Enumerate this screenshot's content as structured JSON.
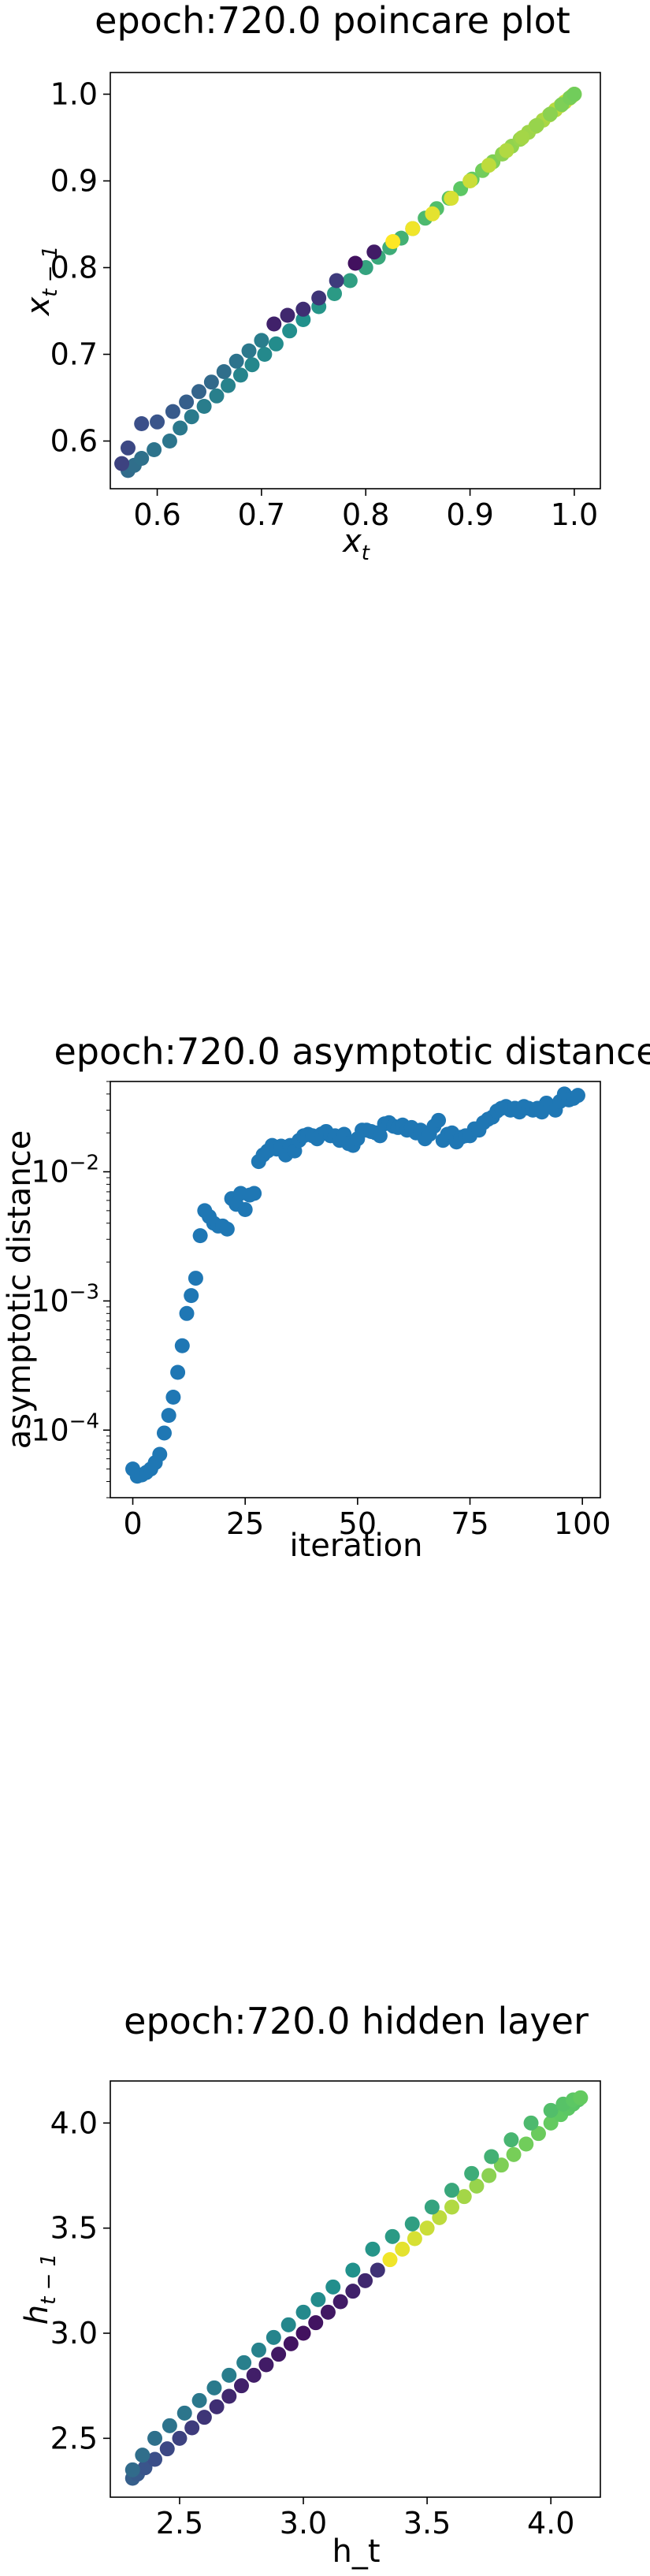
{
  "chart_data": [
    {
      "type": "scatter",
      "title": "epoch:720.0 poincare plot",
      "xlabel": "x_t",
      "ylabel": "x_{t-1}",
      "xlim": [
        0.555,
        1.025
      ],
      "ylim": [
        0.545,
        1.025
      ],
      "xticks": [
        0.6,
        0.7,
        0.8,
        0.9,
        1.0
      ],
      "xtick_labels": [
        "0.6",
        "0.7",
        "0.8",
        "0.9",
        "1.0"
      ],
      "yticks": [
        0.6,
        0.7,
        0.8,
        0.9,
        1.0
      ],
      "ytick_labels": [
        "0.6",
        "0.7",
        "0.8",
        "0.9",
        "1.0"
      ],
      "grid": false,
      "color_by": "viridis sequence along trajectory",
      "series": [
        {
          "x": [
            0.572,
            0.578,
            0.585,
            0.597,
            0.612,
            0.622,
            0.633,
            0.645,
            0.657,
            0.668,
            0.68,
            0.691,
            0.703,
            0.714,
            0.727,
            0.74,
            0.755,
            0.77,
            0.785,
            0.8,
            0.812,
            0.823,
            0.834,
            0.845,
            0.857,
            0.868,
            0.88,
            0.891,
            0.902,
            0.912,
            0.922,
            0.931,
            0.94,
            0.948,
            0.956,
            0.963,
            0.97,
            0.976,
            0.982,
            0.987,
            0.991,
            0.995,
            0.998,
            1.0,
            0.566,
            0.572,
            0.585,
            0.6,
            0.615,
            0.628,
            0.64,
            0.652,
            0.664,
            0.676,
            0.688,
            0.7,
            0.712,
            0.725,
            0.74,
            0.755,
            0.772,
            0.79,
            0.808,
            0.826,
            0.845,
            0.864,
            0.882,
            0.9,
            0.918,
            0.935,
            0.95,
            0.964,
            0.977,
            0.988,
            0.996,
            1.0
          ],
          "y": [
            0.566,
            0.572,
            0.58,
            0.59,
            0.6,
            0.615,
            0.628,
            0.64,
            0.652,
            0.664,
            0.676,
            0.688,
            0.7,
            0.712,
            0.727,
            0.74,
            0.755,
            0.77,
            0.785,
            0.8,
            0.812,
            0.823,
            0.834,
            0.845,
            0.857,
            0.868,
            0.88,
            0.891,
            0.902,
            0.912,
            0.922,
            0.931,
            0.94,
            0.948,
            0.956,
            0.963,
            0.97,
            0.976,
            0.982,
            0.987,
            0.991,
            0.995,
            0.998,
            1.0,
            0.574,
            0.592,
            0.62,
            0.622,
            0.634,
            0.645,
            0.657,
            0.668,
            0.68,
            0.692,
            0.704,
            0.716,
            0.735,
            0.745,
            0.752,
            0.765,
            0.785,
            0.805,
            0.818,
            0.83,
            0.845,
            0.862,
            0.88,
            0.9,
            0.918,
            0.935,
            0.95,
            0.964,
            0.977,
            0.988,
            0.996,
            1.0
          ],
          "c": [
            0.35,
            0.36,
            0.37,
            0.38,
            0.39,
            0.4,
            0.41,
            0.42,
            0.43,
            0.44,
            0.45,
            0.46,
            0.47,
            0.48,
            0.49,
            0.5,
            0.52,
            0.54,
            0.56,
            0.58,
            0.6,
            0.62,
            0.64,
            0.66,
            0.68,
            0.7,
            0.72,
            0.74,
            0.76,
            0.78,
            0.8,
            0.82,
            0.83,
            0.84,
            0.85,
            0.86,
            0.87,
            0.88,
            0.89,
            0.9,
            0.91,
            0.92,
            0.93,
            0.94,
            0.2,
            0.22,
            0.24,
            0.26,
            0.28,
            0.3,
            0.32,
            0.34,
            0.36,
            0.38,
            0.4,
            0.42,
            0.1,
            0.12,
            0.14,
            0.16,
            0.18,
            0.05,
            0.08,
            1.0,
            0.98,
            0.96,
            0.94,
            0.92,
            0.9,
            0.88,
            0.86,
            0.84,
            0.82,
            0.8,
            0.79,
            0.78
          ]
        }
      ]
    },
    {
      "type": "scatter",
      "title": "epoch:720.0 asymptotic distance",
      "xlabel": "iteration",
      "ylabel": "asymptotic distance",
      "yscale": "log",
      "xlim": [
        -5,
        104
      ],
      "ylim": [
        3e-05,
        0.05
      ],
      "xticks": [
        0,
        25,
        50,
        75,
        100
      ],
      "xtick_labels": [
        "0",
        "25",
        "50",
        "75",
        "100"
      ],
      "ytick_exponents": [
        -4,
        -3,
        -2
      ],
      "grid": false,
      "color": "#1f77b4",
      "series": [
        {
          "x": [
            0,
            1,
            2,
            3,
            4,
            5,
            6,
            7,
            8,
            9,
            10,
            11,
            12,
            13,
            14,
            15,
            16,
            17,
            18,
            19,
            20,
            21,
            22,
            23,
            24,
            25,
            26,
            27,
            28,
            29,
            30,
            31,
            32,
            33,
            34,
            35,
            36,
            37,
            38,
            39,
            40,
            41,
            42,
            43,
            44,
            45,
            46,
            47,
            48,
            49,
            50,
            51,
            52,
            53,
            54,
            55,
            56,
            57,
            58,
            59,
            60,
            61,
            62,
            63,
            64,
            65,
            66,
            67,
            68,
            69,
            70,
            71,
            72,
            73,
            74,
            75,
            76,
            77,
            78,
            79,
            80,
            81,
            82,
            83,
            84,
            85,
            86,
            87,
            88,
            89,
            90,
            91,
            92,
            93,
            94,
            95,
            96,
            97,
            98,
            99
          ],
          "y": [
            5e-05,
            4.4e-05,
            4.5e-05,
            4.7e-05,
            5e-05,
            5.6e-05,
            6.5e-05,
            9.5e-05,
            0.00013,
            0.00018,
            0.00028,
            0.00045,
            0.0008,
            0.0011,
            0.0015,
            0.0032,
            0.005,
            0.0045,
            0.004,
            0.0038,
            0.0038,
            0.0036,
            0.0062,
            0.0056,
            0.0068,
            0.0051,
            0.0066,
            0.0068,
            0.012,
            0.0135,
            0.0145,
            0.016,
            0.015,
            0.0158,
            0.0135,
            0.016,
            0.0145,
            0.0175,
            0.019,
            0.0195,
            0.019,
            0.018,
            0.0196,
            0.0205,
            0.019,
            0.019,
            0.0175,
            0.0195,
            0.0165,
            0.016,
            0.018,
            0.021,
            0.021,
            0.0205,
            0.02,
            0.019,
            0.0235,
            0.024,
            0.0225,
            0.022,
            0.023,
            0.021,
            0.022,
            0.02,
            0.021,
            0.018,
            0.0195,
            0.0225,
            0.025,
            0.0175,
            0.0195,
            0.02,
            0.017,
            0.0185,
            0.019,
            0.019,
            0.0215,
            0.021,
            0.024,
            0.0255,
            0.0265,
            0.0295,
            0.031,
            0.032,
            0.03,
            0.031,
            0.029,
            0.032,
            0.031,
            0.03,
            0.031,
            0.029,
            0.034,
            0.032,
            0.03,
            0.035,
            0.04,
            0.036,
            0.037,
            0.039
          ]
        }
      ]
    },
    {
      "type": "scatter",
      "title": "epoch:720.0 hidden layer",
      "xlabel": "h_t",
      "ylabel": "h_{t-1}",
      "xlim": [
        2.22,
        4.2
      ],
      "ylim": [
        2.22,
        4.2
      ],
      "xticks": [
        2.5,
        3.0,
        3.5,
        4.0
      ],
      "xtick_labels": [
        "2.5",
        "3.0",
        "3.5",
        "4.0"
      ],
      "yticks": [
        2.5,
        3.0,
        3.5,
        4.0
      ],
      "ytick_labels": [
        "2.5",
        "3.0",
        "3.5",
        "4.0"
      ],
      "grid": false,
      "color_by": "viridis sequence along trajectory",
      "series": [
        {
          "x": [
            2.31,
            2.33,
            2.36,
            2.4,
            2.45,
            2.5,
            2.55,
            2.6,
            2.65,
            2.7,
            2.75,
            2.8,
            2.85,
            2.9,
            2.95,
            3.0,
            3.05,
            3.1,
            3.15,
            3.2,
            3.25,
            3.3,
            3.35,
            3.4,
            3.45,
            3.5,
            3.55,
            3.6,
            3.65,
            3.7,
            3.75,
            3.8,
            3.85,
            3.9,
            3.95,
            4.0,
            4.04,
            4.07,
            4.09,
            4.11,
            2.31,
            2.35,
            2.4,
            2.46,
            2.52,
            2.58,
            2.64,
            2.7,
            2.76,
            2.82,
            2.88,
            2.94,
            3.0,
            3.06,
            3.12,
            3.2,
            3.28,
            3.36,
            3.44,
            3.52,
            3.6,
            3.68,
            3.76,
            3.84,
            3.92,
            4.0,
            4.05,
            4.09,
            4.12
          ],
          "y": [
            2.31,
            2.33,
            2.36,
            2.4,
            2.45,
            2.5,
            2.55,
            2.6,
            2.65,
            2.7,
            2.75,
            2.8,
            2.85,
            2.9,
            2.95,
            3.0,
            3.05,
            3.1,
            3.15,
            3.2,
            3.25,
            3.3,
            3.35,
            3.4,
            3.45,
            3.5,
            3.55,
            3.6,
            3.65,
            3.7,
            3.75,
            3.8,
            3.85,
            3.9,
            3.95,
            4.0,
            4.04,
            4.07,
            4.09,
            4.11,
            2.35,
            2.42,
            2.5,
            2.56,
            2.62,
            2.68,
            2.74,
            2.8,
            2.86,
            2.92,
            2.98,
            3.04,
            3.1,
            3.16,
            3.22,
            3.3,
            3.4,
            3.46,
            3.52,
            3.6,
            3.68,
            3.76,
            3.84,
            3.92,
            4.0,
            4.06,
            4.09,
            4.11,
            4.12
          ],
          "c": [
            0.3,
            0.28,
            0.26,
            0.24,
            0.22,
            0.2,
            0.18,
            0.16,
            0.14,
            0.12,
            0.1,
            0.09,
            0.08,
            0.07,
            0.06,
            0.05,
            0.06,
            0.07,
            0.08,
            0.1,
            0.12,
            0.15,
            0.98,
            0.96,
            0.94,
            0.92,
            0.9,
            0.88,
            0.86,
            0.84,
            0.82,
            0.8,
            0.79,
            0.78,
            0.77,
            0.76,
            0.75,
            0.74,
            0.73,
            0.72,
            0.35,
            0.36,
            0.37,
            0.38,
            0.39,
            0.4,
            0.41,
            0.42,
            0.43,
            0.44,
            0.45,
            0.46,
            0.47,
            0.48,
            0.49,
            0.5,
            0.52,
            0.54,
            0.56,
            0.58,
            0.6,
            0.62,
            0.64,
            0.66,
            0.68,
            0.7,
            0.72,
            0.74,
            0.76
          ]
        }
      ]
    }
  ]
}
